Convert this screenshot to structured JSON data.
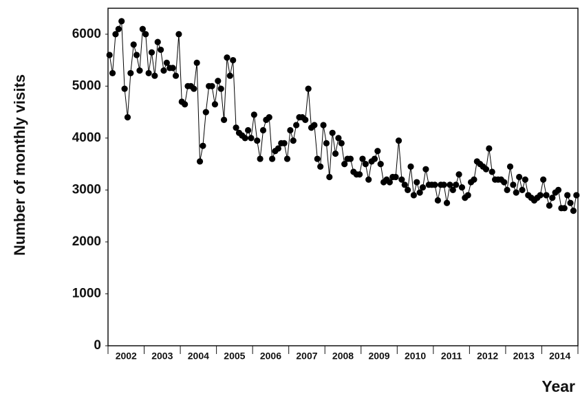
{
  "chart_data": {
    "type": "line",
    "x_label": "Year",
    "y_label": "Number of monthly visits",
    "categories": [
      null,
      null,
      null,
      null,
      null,
      null,
      "2002",
      null,
      null,
      null,
      null,
      null,
      null,
      null,
      null,
      null,
      null,
      null,
      "2003",
      null,
      null,
      null,
      null,
      null,
      null,
      null,
      null,
      null,
      null,
      null,
      "2004",
      null,
      null,
      null,
      null,
      null,
      null,
      null,
      null,
      null,
      null,
      null,
      "2005",
      null,
      null,
      null,
      null,
      null,
      null,
      null,
      null,
      null,
      null,
      null,
      "2006",
      null,
      null,
      null,
      null,
      null,
      null,
      null,
      null,
      null,
      null,
      null,
      "2007",
      null,
      null,
      null,
      null,
      null,
      null,
      null,
      null,
      null,
      null,
      null,
      "2008",
      null,
      null,
      null,
      null,
      null,
      null,
      null,
      null,
      null,
      null,
      null,
      "2009",
      null,
      null,
      null,
      null,
      null,
      null,
      null,
      null,
      null,
      null,
      null,
      "2010",
      null,
      null,
      null,
      null,
      null,
      null,
      null,
      null,
      null,
      null,
      null,
      "2011",
      null,
      null,
      null,
      null,
      null,
      null,
      null,
      null,
      null,
      null,
      null,
      "2012",
      null,
      null,
      null,
      null,
      null,
      null,
      null,
      null,
      null,
      null,
      null,
      "2013",
      null,
      null,
      null,
      null,
      null,
      null,
      null,
      null,
      null,
      null,
      null,
      "2014",
      null,
      null,
      null,
      null,
      null
    ],
    "values": [
      5600,
      5250,
      6000,
      6100,
      6250,
      4950,
      4400,
      5250,
      5800,
      5600,
      5300,
      6100,
      6000,
      5250,
      5650,
      5200,
      5850,
      5700,
      5300,
      5450,
      5350,
      5350,
      5200,
      6000,
      4700,
      4650,
      5000,
      5000,
      4950,
      5450,
      3550,
      3850,
      4500,
      5000,
      5000,
      4650,
      5100,
      4950,
      4350,
      5550,
      5200,
      5500,
      4200,
      4100,
      4050,
      4000,
      4150,
      4000,
      4450,
      3950,
      3600,
      4150,
      4350,
      4400,
      3600,
      3750,
      3800,
      3900,
      3900,
      3600,
      4150,
      3950,
      4250,
      4400,
      4400,
      4350,
      4950,
      4200,
      4250,
      3600,
      3450,
      4250,
      3900,
      3250,
      4100,
      3700,
      4000,
      3900,
      3500,
      3600,
      3600,
      3350,
      3300,
      3300,
      3600,
      3500,
      3200,
      3550,
      3600,
      3750,
      3500,
      3150,
      3200,
      3150,
      3250,
      3250,
      3950,
      3200,
      3100,
      3000,
      3450,
      2900,
      3150,
      2950,
      3050,
      3400,
      3100,
      3100,
      3100,
      2800,
      3100,
      3100,
      2750,
      3100,
      3000,
      3100,
      3300,
      3050,
      2850,
      2900,
      3150,
      3200,
      3550,
      3500,
      3450,
      3400,
      3800,
      3350,
      3200,
      3200,
      3200,
      3150,
      3000,
      3450,
      3100,
      2950,
      3250,
      3000,
      3200,
      2900,
      2850,
      2800,
      2850,
      2900,
      3200,
      2900,
      2700,
      2850,
      2950,
      3000,
      2650,
      2650,
      2900,
      2750,
      2600,
      2900
    ],
    "color": "#000000",
    "ylim": [
      0,
      6500
    ],
    "yticks": [
      0,
      1000,
      2000,
      3000,
      4000,
      5000,
      6000
    ],
    "grid": false
  }
}
